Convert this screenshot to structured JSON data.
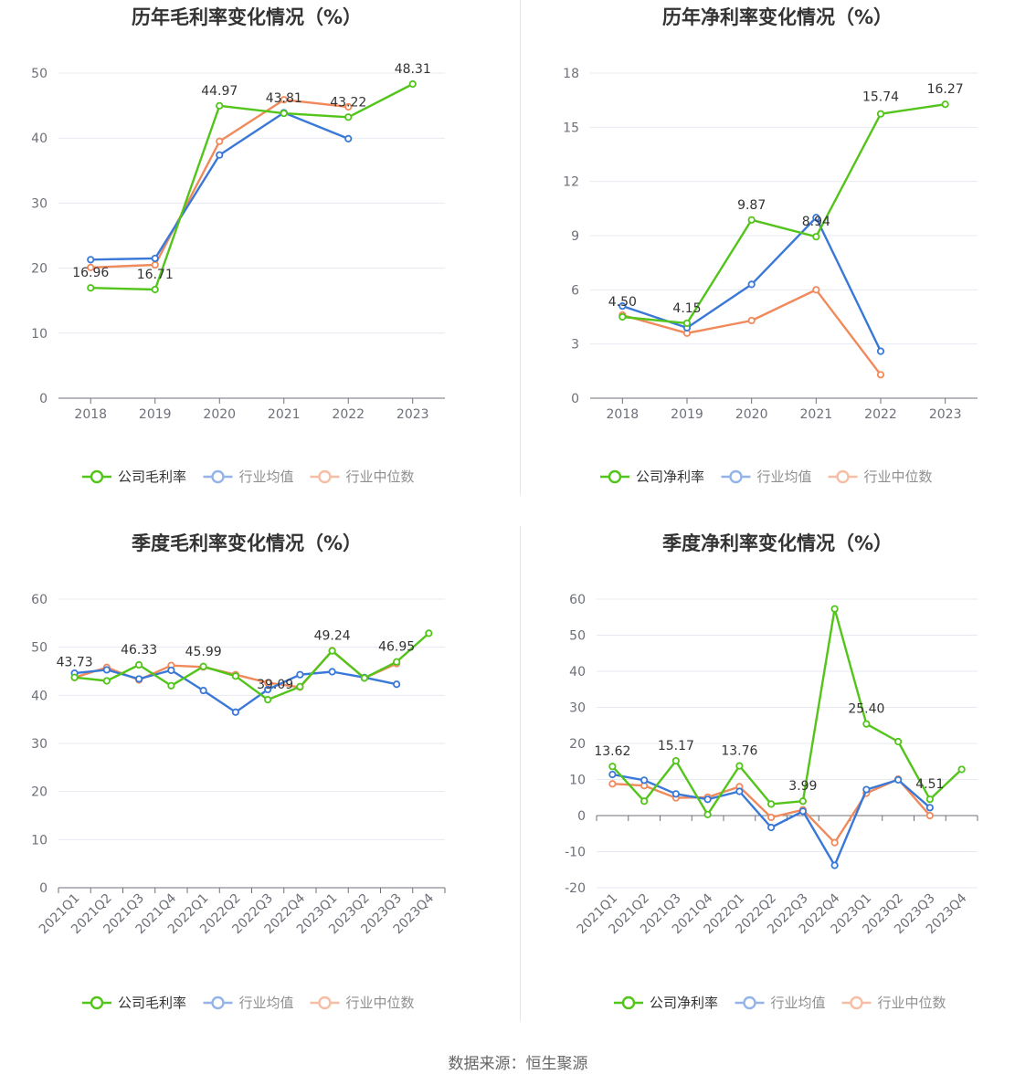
{
  "colors": {
    "company": "#52c41a",
    "industry_avg": "#3a78d8",
    "industry_median": "#f08a5d",
    "grid": "#e6e9f0",
    "axis": "#6e7079"
  },
  "source": "数据来源：恒生聚源",
  "chart_data": [
    {
      "type": "line",
      "title": "历年毛利率变化情况（%）",
      "categories": [
        "2018",
        "2019",
        "2020",
        "2021",
        "2022",
        "2023"
      ],
      "ylim": [
        0,
        50
      ],
      "yticks": [
        0,
        10,
        20,
        30,
        40,
        50
      ],
      "legend_placement": "bottom",
      "series": [
        {
          "name": "公司毛利率",
          "key": "company",
          "values": [
            16.96,
            16.71,
            44.97,
            43.81,
            43.22,
            48.31
          ],
          "labels": [
            "16.96",
            "16.71",
            "44.97",
            "43.81",
            "43.22",
            "48.31"
          ]
        },
        {
          "name": "行业均值",
          "key": "industry_avg",
          "values": [
            21.3,
            21.5,
            37.4,
            43.9,
            39.9,
            null
          ]
        },
        {
          "name": "行业中位数",
          "key": "industry_median",
          "values": [
            20.1,
            20.5,
            39.5,
            45.9,
            44.8,
            null
          ]
        }
      ]
    },
    {
      "type": "line",
      "title": "历年净利率变化情况（%）",
      "categories": [
        "2018",
        "2019",
        "2020",
        "2021",
        "2022",
        "2023"
      ],
      "ylim": [
        0,
        18
      ],
      "yticks": [
        0,
        3,
        6,
        9,
        12,
        15,
        18
      ],
      "legend_placement": "bottom",
      "series": [
        {
          "name": "公司净利率",
          "key": "company",
          "values": [
            4.5,
            4.15,
            9.87,
            8.94,
            15.74,
            16.27
          ],
          "labels": [
            "4.50",
            "4.15",
            "9.87",
            "8.94",
            "15.74",
            "16.27"
          ]
        },
        {
          "name": "行业均值",
          "key": "industry_avg",
          "values": [
            5.1,
            3.9,
            6.3,
            10.0,
            2.6,
            null
          ]
        },
        {
          "name": "行业中位数",
          "key": "industry_median",
          "values": [
            4.6,
            3.6,
            4.3,
            6.0,
            1.3,
            null
          ]
        }
      ]
    },
    {
      "type": "line",
      "title": "季度毛利率变化情况（%）",
      "categories": [
        "2021Q1",
        "2021Q2",
        "2021Q3",
        "2021Q4",
        "2022Q1",
        "2022Q2",
        "2022Q3",
        "2022Q4",
        "2023Q1",
        "2023Q2",
        "2023Q3",
        "2023Q4"
      ],
      "ylim": [
        0,
        60
      ],
      "yticks": [
        0,
        10,
        20,
        30,
        40,
        50,
        60
      ],
      "legend_placement": "bottom",
      "series": [
        {
          "name": "公司毛利率",
          "key": "company",
          "values": [
            43.73,
            43.0,
            46.33,
            42.0,
            45.99,
            44.0,
            39.09,
            41.8,
            49.24,
            43.6,
            46.95,
            52.9
          ],
          "labels": [
            "43.73",
            null,
            "46.33",
            null,
            "45.99",
            null,
            "39.09",
            null,
            "49.24",
            null,
            "46.95",
            null
          ]
        },
        {
          "name": "行业均值",
          "key": "industry_avg",
          "values": [
            44.6,
            45.3,
            43.4,
            45.2,
            41.0,
            36.5,
            41.2,
            44.3,
            44.9,
            43.7,
            42.3,
            null
          ]
        },
        {
          "name": "行业中位数",
          "key": "industry_median",
          "values": [
            43.7,
            45.8,
            43.2,
            46.2,
            45.9,
            44.3,
            42.6,
            41.7,
            49.3,
            43.6,
            46.6,
            null
          ]
        }
      ]
    },
    {
      "type": "line",
      "title": "季度净利率变化情况（%）",
      "categories": [
        "2021Q1",
        "2021Q2",
        "2021Q3",
        "2021Q4",
        "2022Q1",
        "2022Q2",
        "2022Q3",
        "2022Q4",
        "2023Q1",
        "2023Q2",
        "2023Q3",
        "2023Q4"
      ],
      "ylim": [
        -20,
        60
      ],
      "yticks": [
        -20,
        -10,
        0,
        10,
        20,
        30,
        40,
        50,
        60
      ],
      "legend_placement": "bottom",
      "series": [
        {
          "name": "公司净利率",
          "key": "company",
          "values": [
            13.62,
            4.0,
            15.17,
            0.3,
            13.76,
            3.2,
            3.99,
            57.3,
            25.4,
            20.5,
            4.51,
            12.8
          ],
          "labels": [
            "13.62",
            null,
            "15.17",
            null,
            "13.76",
            null,
            "3.99",
            null,
            "25.40",
            null,
            "4.51",
            null
          ]
        },
        {
          "name": "行业均值",
          "key": "industry_avg",
          "values": [
            11.4,
            9.8,
            6.0,
            4.5,
            6.7,
            -3.3,
            1.2,
            -13.8,
            7.2,
            9.9,
            2.2,
            null
          ]
        },
        {
          "name": "行业中位数",
          "key": "industry_median",
          "values": [
            8.8,
            8.3,
            4.9,
            5.1,
            8.0,
            -0.5,
            1.6,
            -7.5,
            6.2,
            10.1,
            0.0,
            null
          ]
        }
      ]
    }
  ]
}
